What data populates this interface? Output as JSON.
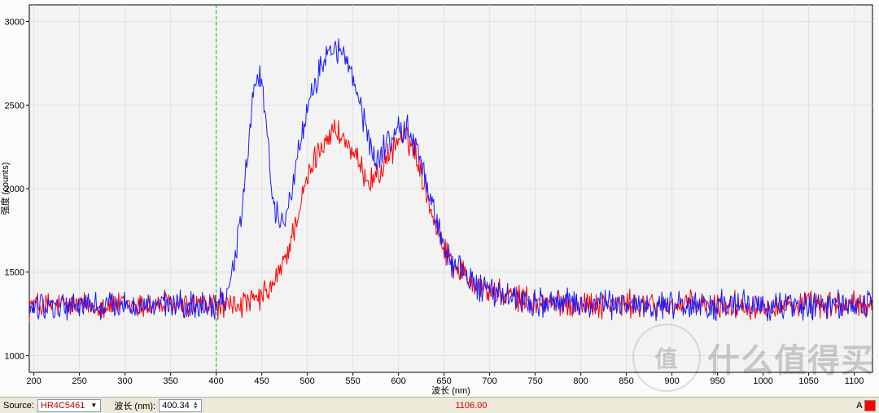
{
  "chart": {
    "type": "line",
    "background_color": "#fbfbfb",
    "plot_background_color": "#f3f3f3",
    "grid_color": "#e0e0e0",
    "axis_color": "#000000",
    "xlabel": "波长 (nm)",
    "ylabel": "强度 (counts)",
    "label_fontsize": 11,
    "tick_fontsize": 11,
    "xlim": [
      195,
      1120
    ],
    "ylim": [
      900,
      3100
    ],
    "x_ticks": [
      200,
      250,
      300,
      350,
      400,
      450,
      500,
      550,
      600,
      650,
      700,
      750,
      800,
      850,
      900,
      950,
      1000,
      1050,
      1100
    ],
    "y_ticks": [
      1000,
      1500,
      2000,
      2500,
      3000
    ],
    "marker_line": {
      "x": 400,
      "color": "#00c000",
      "dash": "4,3",
      "width": 1
    },
    "series": [
      {
        "name": "blue",
        "color": "#1a1aff",
        "line_width": 1,
        "noise_amp": 140,
        "envelope": [
          [
            195,
            1300
          ],
          [
            300,
            1300
          ],
          [
            380,
            1300
          ],
          [
            400,
            1310
          ],
          [
            410,
            1350
          ],
          [
            420,
            1550
          ],
          [
            430,
            1950
          ],
          [
            440,
            2550
          ],
          [
            445,
            2700
          ],
          [
            450,
            2650
          ],
          [
            455,
            2400
          ],
          [
            460,
            2050
          ],
          [
            465,
            1850
          ],
          [
            470,
            1800
          ],
          [
            475,
            1850
          ],
          [
            480,
            1950
          ],
          [
            490,
            2200
          ],
          [
            500,
            2450
          ],
          [
            510,
            2650
          ],
          [
            520,
            2800
          ],
          [
            530,
            2850
          ],
          [
            540,
            2800
          ],
          [
            550,
            2650
          ],
          [
            560,
            2450
          ],
          [
            570,
            2250
          ],
          [
            575,
            2150
          ],
          [
            580,
            2200
          ],
          [
            590,
            2300
          ],
          [
            600,
            2350
          ],
          [
            610,
            2350
          ],
          [
            620,
            2250
          ],
          [
            630,
            2050
          ],
          [
            640,
            1850
          ],
          [
            650,
            1650
          ],
          [
            660,
            1550
          ],
          [
            680,
            1450
          ],
          [
            700,
            1380
          ],
          [
            750,
            1320
          ],
          [
            800,
            1310
          ],
          [
            900,
            1300
          ],
          [
            1000,
            1300
          ],
          [
            1120,
            1300
          ]
        ]
      },
      {
        "name": "red",
        "color": "#ff0000",
        "line_width": 1,
        "noise_amp": 130,
        "envelope": [
          [
            195,
            1300
          ],
          [
            300,
            1300
          ],
          [
            400,
            1300
          ],
          [
            420,
            1300
          ],
          [
            440,
            1320
          ],
          [
            450,
            1350
          ],
          [
            460,
            1400
          ],
          [
            470,
            1500
          ],
          [
            480,
            1650
          ],
          [
            490,
            1850
          ],
          [
            500,
            2050
          ],
          [
            510,
            2200
          ],
          [
            520,
            2300
          ],
          [
            530,
            2350
          ],
          [
            540,
            2300
          ],
          [
            550,
            2200
          ],
          [
            560,
            2100
          ],
          [
            570,
            2050
          ],
          [
            580,
            2100
          ],
          [
            590,
            2200
          ],
          [
            600,
            2300
          ],
          [
            610,
            2300
          ],
          [
            620,
            2200
          ],
          [
            630,
            2000
          ],
          [
            640,
            1800
          ],
          [
            650,
            1650
          ],
          [
            660,
            1550
          ],
          [
            680,
            1450
          ],
          [
            700,
            1380
          ],
          [
            750,
            1320
          ],
          [
            800,
            1310
          ],
          [
            900,
            1300
          ],
          [
            1000,
            1300
          ],
          [
            1120,
            1300
          ]
        ]
      }
    ]
  },
  "status": {
    "source_label": "Source:",
    "source_value": "HR4C5461",
    "wavelength_label": "波长 (nm):",
    "wavelength_value": "400.34",
    "readout_value": "1106.00"
  },
  "watermark": {
    "logo_text": "值",
    "text": "什么值得买"
  }
}
